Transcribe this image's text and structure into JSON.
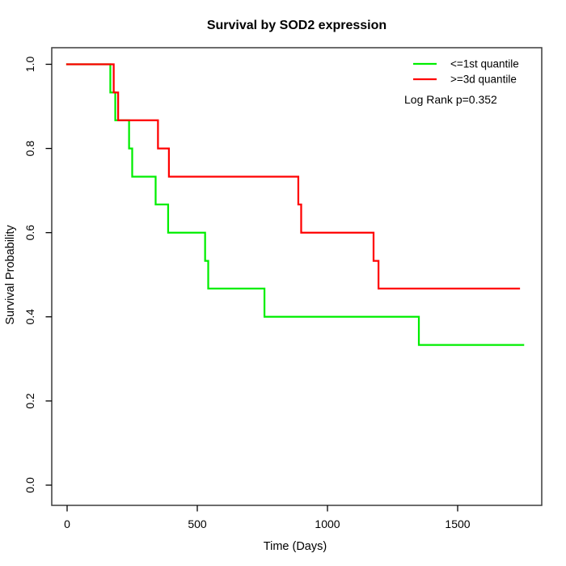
{
  "chart_data": {
    "type": "line",
    "subtype": "kaplan-meier-step",
    "title": "Survival by SOD2 expression",
    "xlabel": "Time (Days)",
    "ylabel": "Survival Probability",
    "xlim": [
      0,
      1820
    ],
    "ylim": [
      0.0,
      1.0
    ],
    "grid": false,
    "legend_position": "top-right-inside",
    "annotation": "Log Rank p=0.352",
    "x_ticks": [
      {
        "label": "0",
        "value": 0
      },
      {
        "label": "500",
        "value": 500
      },
      {
        "label": "1000",
        "value": 1000
      },
      {
        "label": "1500",
        "value": 1500
      }
    ],
    "y_ticks": [
      {
        "label": "0.0",
        "value": 0.0
      },
      {
        "label": "0.2",
        "value": 0.2
      },
      {
        "label": "0.4",
        "value": 0.4
      },
      {
        "label": "0.6",
        "value": 0.6
      },
      {
        "label": "0.8",
        "value": 0.8
      },
      {
        "label": "1.0",
        "value": 1.0
      }
    ],
    "series": [
      {
        "name": "<=1st quantile",
        "color": "#00ee00",
        "start": [
          0,
          1.0
        ],
        "steps": [
          [
            166,
            0.933
          ],
          [
            185,
            0.867
          ],
          [
            238,
            0.8
          ],
          [
            250,
            0.733
          ],
          [
            340,
            0.667
          ],
          [
            388,
            0.6
          ],
          [
            530,
            0.533
          ],
          [
            542,
            0.467
          ],
          [
            758,
            0.4
          ],
          [
            1351,
            0.333
          ]
        ],
        "end_time": 1752
      },
      {
        "name": ">=3d quantile",
        "color": "#ff0000",
        "start": [
          0,
          1.0
        ],
        "steps": [
          [
            179,
            0.933
          ],
          [
            196,
            0.867
          ],
          [
            349,
            0.8
          ],
          [
            391,
            0.733
          ],
          [
            888,
            0.667
          ],
          [
            899,
            0.6
          ],
          [
            1177,
            0.533
          ],
          [
            1196,
            0.467
          ]
        ],
        "end_time": 1736
      }
    ]
  }
}
